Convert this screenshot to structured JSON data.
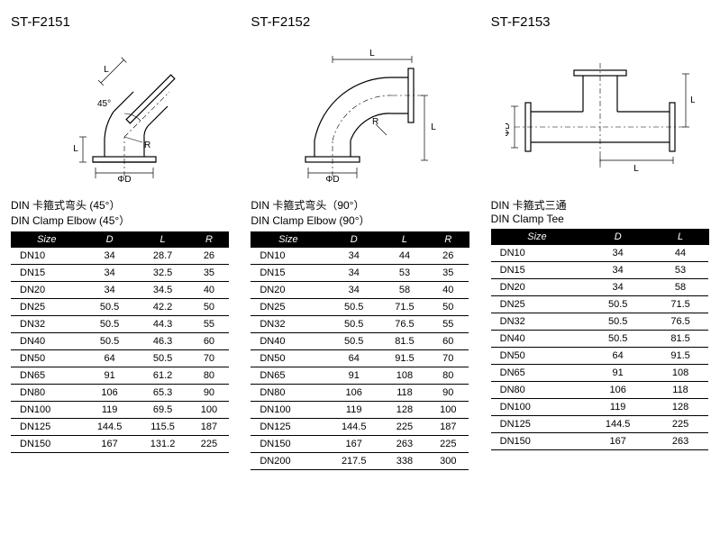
{
  "products": [
    {
      "code": "ST-F2151",
      "caption_cn": "DIN 卡箍式弯头 (45°）",
      "caption_en": "DIN Clamp Elbow (45°）",
      "columns": [
        "Size",
        "D",
        "L",
        "R"
      ],
      "rows": [
        [
          "DN10",
          "34",
          "28.7",
          "26"
        ],
        [
          "DN15",
          "34",
          "32.5",
          "35"
        ],
        [
          "DN20",
          "34",
          "34.5",
          "40"
        ],
        [
          "DN25",
          "50.5",
          "42.2",
          "50"
        ],
        [
          "DN32",
          "50.5",
          "44.3",
          "55"
        ],
        [
          "DN40",
          "50.5",
          "46.3",
          "60"
        ],
        [
          "DN50",
          "64",
          "50.5",
          "70"
        ],
        [
          "DN65",
          "91",
          "61.2",
          "80"
        ],
        [
          "DN80",
          "106",
          "65.3",
          "90"
        ],
        [
          "DN100",
          "119",
          "69.5",
          "100"
        ],
        [
          "DN125",
          "144.5",
          "115.5",
          "187"
        ],
        [
          "DN150",
          "167",
          "131.2",
          "225"
        ]
      ]
    },
    {
      "code": "ST-F2152",
      "caption_cn": "DIN 卡箍式弯头（90°）",
      "caption_en": "DIN Clamp Elbow (90°）",
      "columns": [
        "Size",
        "D",
        "L",
        "R"
      ],
      "rows": [
        [
          "DN10",
          "34",
          "44",
          "26"
        ],
        [
          "DN15",
          "34",
          "53",
          "35"
        ],
        [
          "DN20",
          "34",
          "58",
          "40"
        ],
        [
          "DN25",
          "50.5",
          "71.5",
          "50"
        ],
        [
          "DN32",
          "50.5",
          "76.5",
          "55"
        ],
        [
          "DN40",
          "50.5",
          "81.5",
          "60"
        ],
        [
          "DN50",
          "64",
          "91.5",
          "70"
        ],
        [
          "DN65",
          "91",
          "108",
          "80"
        ],
        [
          "DN80",
          "106",
          "118",
          "90"
        ],
        [
          "DN100",
          "119",
          "128",
          "100"
        ],
        [
          "DN125",
          "144.5",
          "225",
          "187"
        ],
        [
          "DN150",
          "167",
          "263",
          "225"
        ],
        [
          "DN200",
          "217.5",
          "338",
          "300"
        ]
      ]
    },
    {
      "code": "ST-F2153",
      "caption_cn": "DIN 卡箍式三通",
      "caption_en": "DIN Clamp Tee",
      "columns": [
        "Size",
        "D",
        "L"
      ],
      "rows": [
        [
          "DN10",
          "34",
          "44"
        ],
        [
          "DN15",
          "34",
          "53"
        ],
        [
          "DN20",
          "34",
          "58"
        ],
        [
          "DN25",
          "50.5",
          "71.5"
        ],
        [
          "DN32",
          "50.5",
          "76.5"
        ],
        [
          "DN40",
          "50.5",
          "81.5"
        ],
        [
          "DN50",
          "64",
          "91.5"
        ],
        [
          "DN65",
          "91",
          "108"
        ],
        [
          "DN80",
          "106",
          "118"
        ],
        [
          "DN100",
          "119",
          "128"
        ],
        [
          "DN125",
          "144.5",
          "225"
        ],
        [
          "DN150",
          "167",
          "263"
        ]
      ]
    }
  ],
  "labels": {
    "phiD": "ΦD",
    "L": "L",
    "R": "R",
    "angle45": "45°"
  }
}
